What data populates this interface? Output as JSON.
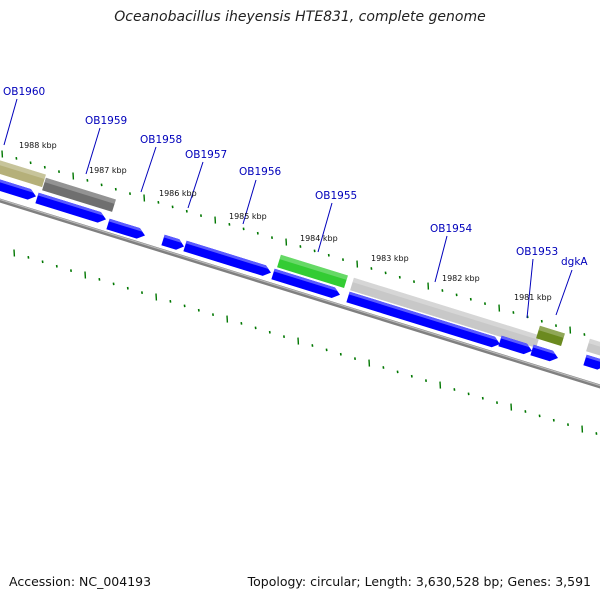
{
  "header": {
    "title": "Oceanobacillus iheyensis HTE831, complete genome"
  },
  "footer": {
    "accession": "Accession: NC_004193",
    "stats": "Topology: circular; Length: 3,630,528 bp; Genes: 3,591"
  },
  "colors": {
    "cds": "#0000ff",
    "backbone": "#808080",
    "tick": "#007700",
    "gene_label": "#0000bb",
    "feature_olive_light": "#b5b07a",
    "feature_dark_gray": "#6f6f6f",
    "feature_green": "#33cc33",
    "feature_light_gray": "#c8c8c8",
    "feature_olive_dark": "#6b8a1f"
  },
  "gene_labels": [
    "OB1960",
    "OB1959",
    "OB1958",
    "OB1957",
    "OB1956",
    "OB1955",
    "OB1954",
    "OB1953",
    "dgkA"
  ],
  "kbp_labels": [
    "1988 kbp",
    "1987 kbp",
    "1986 kbp",
    "1985 kbp",
    "1984 kbp",
    "1983 kbp",
    "1982 kbp",
    "1981 kbp"
  ]
}
